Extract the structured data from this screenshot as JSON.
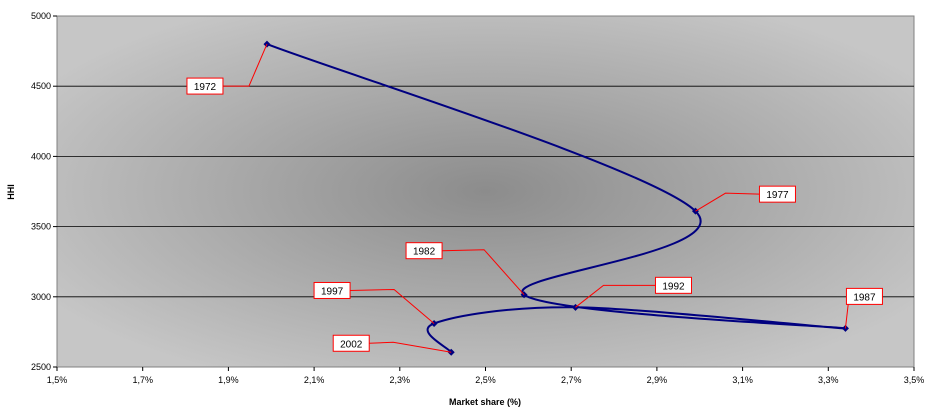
{
  "chart_data": {
    "type": "line",
    "title": "",
    "xlabel": "Market share (%)",
    "ylabel": "HHI",
    "xlim": [
      1.5,
      3.5
    ],
    "ylim": [
      2500,
      5000
    ],
    "x_ticks": [
      "1,5%",
      "1,7%",
      "1,9%",
      "2,1%",
      "2,3%",
      "2,5%",
      "2,7%",
      "2,9%",
      "3,1%",
      "3,3%",
      "3,5%"
    ],
    "y_ticks": [
      "2500",
      "3000",
      "3500",
      "4000",
      "4500",
      "5000"
    ],
    "grid": "horizontal",
    "legend": "none",
    "colors": {
      "line": "#000080",
      "callout": "#ff0000",
      "grid": "#000000"
    },
    "series": [
      {
        "points": [
          {
            "x": 1.99,
            "y": 4800,
            "label": "1972"
          },
          {
            "x": 2.99,
            "y": 3610,
            "label": "1977"
          },
          {
            "x": 2.59,
            "y": 3015,
            "label": "1982"
          },
          {
            "x": 3.34,
            "y": 2775,
            "label": "1987"
          },
          {
            "x": 2.71,
            "y": 2925,
            "label": "1992"
          },
          {
            "x": 2.38,
            "y": 2810,
            "label": "1997"
          },
          {
            "x": 2.42,
            "y": 2605,
            "label": "2002"
          }
        ]
      }
    ]
  }
}
